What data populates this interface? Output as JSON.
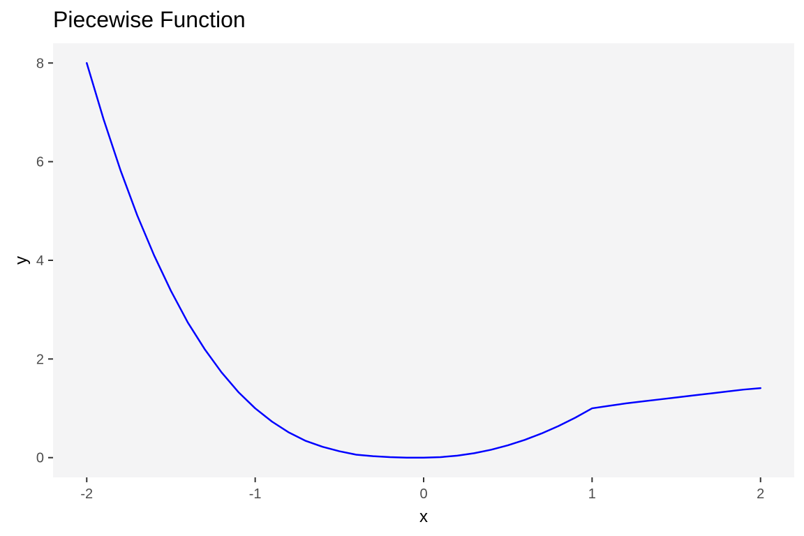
{
  "chart_data": {
    "type": "line",
    "title": "Piecewise Function",
    "xlabel": "x",
    "ylabel": "y",
    "xlim": [
      -2.2,
      2.2
    ],
    "ylim": [
      -0.4,
      8.4
    ],
    "x_ticks": [
      -2,
      -1,
      0,
      1,
      2
    ],
    "x_tick_labels": [
      "-2",
      "-1",
      "0",
      "1",
      "2"
    ],
    "y_ticks": [
      0,
      2,
      4,
      6,
      8
    ],
    "y_tick_labels": [
      "0",
      "2",
      "4",
      "6",
      "8"
    ],
    "grid": false,
    "legend": "none",
    "colors": {
      "line": "#0000ff",
      "panel": "#f4f4f5",
      "tick": "#333333"
    },
    "series": [
      {
        "x": [
          -2.0,
          -1.9,
          -1.8,
          -1.7,
          -1.6,
          -1.5,
          -1.4,
          -1.3,
          -1.2,
          -1.1,
          -1.0,
          -0.9,
          -0.8,
          -0.7,
          -0.6,
          -0.5,
          -0.4,
          -0.3,
          -0.2,
          -0.1,
          0.0,
          0.1,
          0.2,
          0.3,
          0.4,
          0.5,
          0.6,
          0.7,
          0.8,
          0.9,
          1.0,
          1.1,
          1.2,
          1.3,
          1.4,
          1.5,
          1.6,
          1.7,
          1.8,
          1.9,
          2.0
        ],
        "y": [
          8.0,
          6.86,
          5.83,
          4.91,
          4.1,
          3.38,
          2.74,
          2.2,
          1.73,
          1.33,
          1.0,
          0.73,
          0.51,
          0.34,
          0.22,
          0.13,
          0.06,
          0.03,
          0.01,
          0.0,
          0.0,
          0.01,
          0.04,
          0.09,
          0.16,
          0.25,
          0.36,
          0.49,
          0.64,
          0.81,
          1.0,
          1.05,
          1.1,
          1.14,
          1.18,
          1.22,
          1.26,
          1.3,
          1.34,
          1.38,
          1.41
        ]
      }
    ]
  }
}
